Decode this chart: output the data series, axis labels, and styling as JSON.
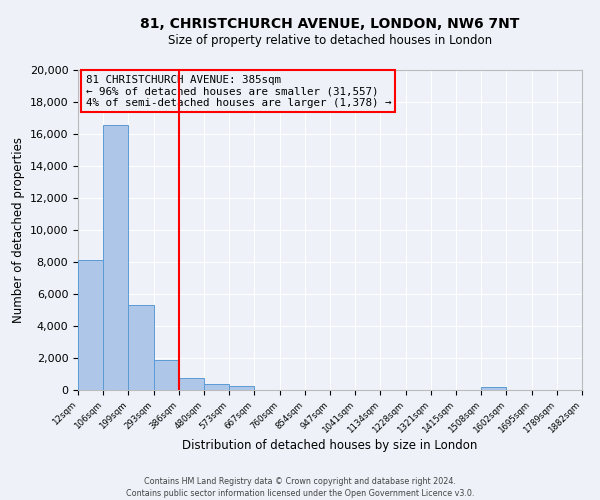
{
  "title": "81, CHRISTCHURCH AVENUE, LONDON, NW6 7NT",
  "subtitle": "Size of property relative to detached houses in London",
  "xlabel": "Distribution of detached houses by size in London",
  "ylabel": "Number of detached properties",
  "bin_labels": [
    "12sqm",
    "106sqm",
    "199sqm",
    "293sqm",
    "386sqm",
    "480sqm",
    "573sqm",
    "667sqm",
    "760sqm",
    "854sqm",
    "947sqm",
    "1041sqm",
    "1134sqm",
    "1228sqm",
    "1321sqm",
    "1415sqm",
    "1508sqm",
    "1602sqm",
    "1695sqm",
    "1789sqm",
    "1882sqm"
  ],
  "bar_heights": [
    8100,
    16550,
    5300,
    1850,
    750,
    350,
    270,
    0,
    0,
    0,
    0,
    0,
    0,
    0,
    0,
    0,
    160,
    0,
    0,
    0,
    0
  ],
  "bar_color": "#aec6e8",
  "bar_edgecolor": "#5b9bd5",
  "property_line_x": 4.0,
  "property_line_color": "red",
  "annotation_title": "81 CHRISTCHURCH AVENUE: 385sqm",
  "annotation_line1": "← 96% of detached houses are smaller (31,557)",
  "annotation_line2": "4% of semi-detached houses are larger (1,378) →",
  "annotation_box_edgecolor": "red",
  "ylim": [
    0,
    20000
  ],
  "yticks": [
    0,
    2000,
    4000,
    6000,
    8000,
    10000,
    12000,
    14000,
    16000,
    18000,
    20000
  ],
  "footer_line1": "Contains HM Land Registry data © Crown copyright and database right 2024.",
  "footer_line2": "Contains public sector information licensed under the Open Government Licence v3.0.",
  "background_color": "#eef2f8",
  "grid_color": "#ffffff"
}
